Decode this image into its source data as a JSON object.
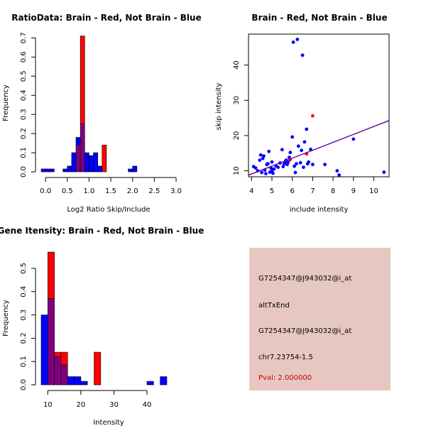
{
  "colors": {
    "red": "#ff0000",
    "blue": "#0000ff",
    "purple": "#7f007f",
    "line_blue": "#0000ff",
    "line_red": "#ff0000",
    "infobox_bg": "#e6c8c0",
    "pval": "#cc0000"
  },
  "chart_data": [
    {
      "type": "bar",
      "subtype": "overlaid-histogram",
      "title": "RatioData: Brain - Red, Not Brain - Blue",
      "xlabel": "Log2 Ratio Skip/Include",
      "ylabel": "Frequency",
      "xlim": [
        -0.1,
        3.0
      ],
      "ylim": [
        0,
        0.72
      ],
      "xticks": [
        "0.0",
        "0.5",
        "1.0",
        "1.5",
        "2.0",
        "2.5",
        "3.0"
      ],
      "xtick_values": [
        0,
        0.5,
        1.0,
        1.5,
        2.0,
        2.5,
        3.0
      ],
      "yticks": [
        "0.0",
        "0.1",
        "0.2",
        "0.3",
        "0.4",
        "0.5",
        "0.6",
        "0.7"
      ],
      "ytick_values": [
        0,
        0.1,
        0.2,
        0.3,
        0.4,
        0.5,
        0.6,
        0.7
      ],
      "bin_start": -0.1,
      "bin_width": 0.1,
      "series": [
        {
          "name": "Not Brain",
          "color": "blue",
          "values": [
            0.015,
            0.015,
            0.015,
            0,
            0,
            0.015,
            0.03,
            0.1,
            0.18,
            0.25,
            0.1,
            0.085,
            0.1,
            0.03,
            0,
            0,
            0,
            0,
            0,
            0,
            0.015,
            0.03
          ]
        },
        {
          "name": "Brain",
          "color": "red",
          "values": [
            0,
            0,
            0,
            0,
            0,
            0,
            0,
            0,
            0.14,
            0.71,
            0,
            0,
            0,
            0,
            0.14,
            0,
            0,
            0,
            0,
            0,
            0,
            0
          ]
        }
      ]
    },
    {
      "type": "scatter",
      "title": "Brain - Red, Not Brain - Blue",
      "xlabel": "include intensity",
      "ylabel": "skip intensity",
      "xlim": [
        3.85,
        10.75
      ],
      "ylim": [
        8.3,
        48.8
      ],
      "xticks": [
        "4",
        "5",
        "6",
        "7",
        "8",
        "9",
        "10"
      ],
      "xtick_values": [
        4,
        5,
        6,
        7,
        8,
        9,
        10
      ],
      "yticks": [
        "10",
        "20",
        "30",
        "40"
      ],
      "ytick_values": [
        10,
        20,
        30,
        40
      ],
      "series": [
        {
          "name": "Not Brain",
          "color": "blue",
          "points": [
            [
              4.1,
              11.2
            ],
            [
              4.2,
              10.8
            ],
            [
              4.3,
              10.0
            ],
            [
              4.4,
              13.0
            ],
            [
              4.45,
              14.5
            ],
            [
              4.5,
              9.5
            ],
            [
              4.55,
              13.5
            ],
            [
              4.6,
              14.2
            ],
            [
              4.65,
              10.2
            ],
            [
              4.7,
              9.2
            ],
            [
              4.75,
              11.8
            ],
            [
              4.8,
              12.0
            ],
            [
              4.85,
              15.5
            ],
            [
              4.9,
              9.6
            ],
            [
              4.95,
              10.8
            ],
            [
              5.0,
              12.5
            ],
            [
              5.05,
              9.3
            ],
            [
              5.1,
              10.5
            ],
            [
              5.2,
              11.4
            ],
            [
              5.3,
              11.0
            ],
            [
              5.4,
              12.2
            ],
            [
              5.5,
              16.0
            ],
            [
              5.55,
              11.2
            ],
            [
              5.6,
              12.0
            ],
            [
              5.7,
              13.0
            ],
            [
              5.75,
              11.8
            ],
            [
              5.8,
              12.5
            ],
            [
              5.85,
              13.8
            ],
            [
              5.9,
              15.2
            ],
            [
              6.0,
              19.6
            ],
            [
              6.05,
              46.5
            ],
            [
              6.1,
              11.3
            ],
            [
              6.15,
              9.5
            ],
            [
              6.2,
              12.0
            ],
            [
              6.25,
              47.3
            ],
            [
              6.3,
              17.0
            ],
            [
              6.4,
              12.3
            ],
            [
              6.45,
              15.8
            ],
            [
              6.5,
              42.8
            ],
            [
              6.55,
              11.0
            ],
            [
              6.6,
              18.2
            ],
            [
              6.7,
              21.8
            ],
            [
              6.8,
              12.5
            ],
            [
              6.9,
              16.1
            ],
            [
              7.0,
              11.8
            ],
            [
              7.6,
              11.8
            ],
            [
              8.2,
              10.0
            ],
            [
              8.3,
              8.8
            ],
            [
              9.0,
              19.0
            ],
            [
              10.5,
              9.6
            ],
            [
              5.0,
              10.0
            ],
            [
              5.65,
              12.6
            ],
            [
              6.75,
              12.0
            ]
          ]
        },
        {
          "name": "Brain",
          "color": "red",
          "points": [
            [
              7.0,
              25.6
            ],
            [
              6.7,
              14.8
            ],
            [
              5.9,
              13.2
            ]
          ]
        }
      ],
      "regression": {
        "from": [
          3.85,
          8.8
        ],
        "to": [
          10.75,
          24.3
        ]
      }
    },
    {
      "type": "bar",
      "subtype": "overlaid-histogram",
      "title": "Gene Itensity: Brain - Red, Not Brain - Blue",
      "xlabel": "Intensity",
      "ylabel": "Frequency",
      "xlim": [
        8,
        48.8
      ],
      "ylim": [
        0,
        0.57
      ],
      "xticks": [
        "10",
        "20",
        "30",
        "40"
      ],
      "xtick_values": [
        10,
        20,
        30,
        40
      ],
      "yticks": [
        "0.0",
        "0.1",
        "0.2",
        "0.3",
        "0.4",
        "0.5"
      ],
      "ytick_values": [
        0,
        0.1,
        0.2,
        0.3,
        0.4,
        0.5
      ],
      "bin_start": 8,
      "bin_width": 2,
      "series": [
        {
          "name": "Not Brain",
          "color": "blue",
          "values": [
            0.3,
            0.37,
            0.12,
            0.085,
            0.035,
            0.035,
            0.015,
            0,
            0,
            0,
            0,
            0,
            0,
            0,
            0,
            0,
            0.015,
            0,
            0.035,
            0
          ]
        },
        {
          "name": "Brain",
          "color": "red",
          "values": [
            0,
            0.57,
            0.14,
            0.14,
            0,
            0,
            0,
            0,
            0.14,
            0,
            0,
            0,
            0,
            0,
            0,
            0,
            0,
            0,
            0,
            0
          ]
        }
      ]
    }
  ],
  "infobox": {
    "probe_id": "G7254347@J943032@i_at",
    "event_type": "altTxEnd",
    "probe_id_2": "G7254347@J943032@i_at",
    "location": "chr7.23754-1.5",
    "pval": "Pval: 2.000000"
  }
}
